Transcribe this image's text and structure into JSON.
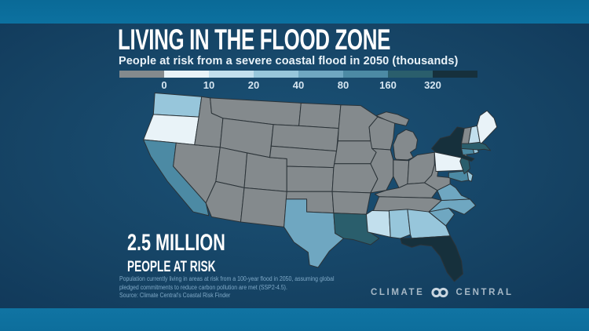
{
  "header": {
    "title": "LIVING IN THE FLOOD ZONE",
    "subtitle": "People at risk from a severe coastal flood in 2050 (thousands)"
  },
  "legend": {
    "tick_labels": [
      "0",
      "10",
      "20",
      "40",
      "80",
      "160",
      "320"
    ],
    "bin_colors": [
      "#848A8D",
      "#E9F3F8",
      "#C2DFED",
      "#97C6DB",
      "#6FA7C1",
      "#4C8AA4",
      "#2A5E6C",
      "#16303C"
    ],
    "bin_ranges": [
      "not shown (inland)",
      "0–10",
      "10–20",
      "20–40",
      "40–80",
      "80–160",
      "160–320",
      "320+"
    ]
  },
  "stat": {
    "line1": "2.5 MILLION",
    "line2": "PEOPLE AT RISK"
  },
  "footnote": {
    "lines": [
      "Population currently living in areas at risk from a 100-year flood in 2050, assuming global",
      "pledged commitments to reduce carbon pollution are met (SSP2-4.5).",
      "Source: Climate Central's Coastal Risk Finder"
    ]
  },
  "logo": {
    "left": "CLIMATE",
    "right": "CENTRAL"
  },
  "chart_data": {
    "type": "heatmap",
    "subtype": "choropleth-us-states",
    "title": "LIVING IN THE FLOOD ZONE",
    "subtitle": "People at risk from a severe coastal flood in 2050 (thousands)",
    "units": "thousands of people at risk",
    "scale_thresholds": [
      0,
      10,
      20,
      40,
      80,
      160,
      320
    ],
    "total_callout": "2.5 MILLION PEOPLE AT RISK",
    "legend_position": "top",
    "states": [
      {
        "id": "WA",
        "name": "Washington",
        "bin": 3,
        "range_thousands": "20-40"
      },
      {
        "id": "OR",
        "name": "Oregon",
        "bin": 1,
        "range_thousands": "0-10"
      },
      {
        "id": "CA",
        "name": "California",
        "bin": 5,
        "range_thousands": "80-160"
      },
      {
        "id": "TX",
        "name": "Texas",
        "bin": 4,
        "range_thousands": "40-80"
      },
      {
        "id": "LA",
        "name": "Louisiana",
        "bin": 6,
        "range_thousands": "160-320"
      },
      {
        "id": "MS",
        "name": "Mississippi",
        "bin": 2,
        "range_thousands": "10-20"
      },
      {
        "id": "AL",
        "name": "Alabama",
        "bin": 3,
        "range_thousands": "20-40"
      },
      {
        "id": "GA",
        "name": "Georgia",
        "bin": 3,
        "range_thousands": "20-40"
      },
      {
        "id": "FL",
        "name": "Florida",
        "bin": 7,
        "range_thousands": "320+"
      },
      {
        "id": "SC",
        "name": "South Carolina",
        "bin": 4,
        "range_thousands": "40-80"
      },
      {
        "id": "NC",
        "name": "North Carolina",
        "bin": 4,
        "range_thousands": "40-80"
      },
      {
        "id": "VA",
        "name": "Virginia",
        "bin": 4,
        "range_thousands": "40-80"
      },
      {
        "id": "MD",
        "name": "Maryland",
        "bin": 5,
        "range_thousands": "80-160"
      },
      {
        "id": "DE",
        "name": "Delaware",
        "bin": 3,
        "range_thousands": "20-40"
      },
      {
        "id": "NJ",
        "name": "New Jersey",
        "bin": 6,
        "range_thousands": "160-320"
      },
      {
        "id": "PA",
        "name": "Pennsylvania",
        "bin": 1,
        "range_thousands": "0-10"
      },
      {
        "id": "NY",
        "name": "New York",
        "bin": 7,
        "range_thousands": "320+"
      },
      {
        "id": "CT",
        "name": "Connecticut",
        "bin": 5,
        "range_thousands": "80-160"
      },
      {
        "id": "RI",
        "name": "Rhode Island",
        "bin": 3,
        "range_thousands": "20-40"
      },
      {
        "id": "MA",
        "name": "Massachusetts",
        "bin": 6,
        "range_thousands": "160-320"
      },
      {
        "id": "NH",
        "name": "New Hampshire",
        "bin": 2,
        "range_thousands": "10-20"
      },
      {
        "id": "ME",
        "name": "Maine",
        "bin": 1,
        "range_thousands": "0-10"
      },
      {
        "id": "VT",
        "name": "Vermont",
        "bin": 0,
        "range_thousands": "not shown"
      },
      {
        "id": "WV",
        "name": "West Virginia",
        "bin": 0,
        "range_thousands": "not shown"
      },
      {
        "id": "ID",
        "name": "Idaho",
        "bin": 0,
        "range_thousands": "not shown"
      },
      {
        "id": "MT",
        "name": "Montana",
        "bin": 0,
        "range_thousands": "not shown"
      },
      {
        "id": "WY",
        "name": "Wyoming",
        "bin": 0,
        "range_thousands": "not shown"
      },
      {
        "id": "NV",
        "name": "Nevada",
        "bin": 0,
        "range_thousands": "not shown"
      },
      {
        "id": "UT",
        "name": "Utah",
        "bin": 0,
        "range_thousands": "not shown"
      },
      {
        "id": "CO",
        "name": "Colorado",
        "bin": 0,
        "range_thousands": "not shown"
      },
      {
        "id": "AZ",
        "name": "Arizona",
        "bin": 0,
        "range_thousands": "not shown"
      },
      {
        "id": "NM",
        "name": "New Mexico",
        "bin": 0,
        "range_thousands": "not shown"
      },
      {
        "id": "ND",
        "name": "North Dakota",
        "bin": 0,
        "range_thousands": "not shown"
      },
      {
        "id": "SD",
        "name": "South Dakota",
        "bin": 0,
        "range_thousands": "not shown"
      },
      {
        "id": "NE",
        "name": "Nebraska",
        "bin": 0,
        "range_thousands": "not shown"
      },
      {
        "id": "KS",
        "name": "Kansas",
        "bin": 0,
        "range_thousands": "not shown"
      },
      {
        "id": "OK",
        "name": "Oklahoma",
        "bin": 0,
        "range_thousands": "not shown"
      },
      {
        "id": "MN",
        "name": "Minnesota",
        "bin": 0,
        "range_thousands": "not shown"
      },
      {
        "id": "IA",
        "name": "Iowa",
        "bin": 0,
        "range_thousands": "not shown"
      },
      {
        "id": "MO",
        "name": "Missouri",
        "bin": 0,
        "range_thousands": "not shown"
      },
      {
        "id": "AR",
        "name": "Arkansas",
        "bin": 0,
        "range_thousands": "not shown"
      },
      {
        "id": "WI",
        "name": "Wisconsin",
        "bin": 0,
        "range_thousands": "not shown"
      },
      {
        "id": "IL",
        "name": "Illinois",
        "bin": 0,
        "range_thousands": "not shown"
      },
      {
        "id": "MI",
        "name": "Michigan",
        "bin": 0,
        "range_thousands": "not shown"
      },
      {
        "id": "IN",
        "name": "Indiana",
        "bin": 0,
        "range_thousands": "not shown"
      },
      {
        "id": "OH",
        "name": "Ohio",
        "bin": 0,
        "range_thousands": "not shown"
      },
      {
        "id": "KY",
        "name": "Kentucky",
        "bin": 0,
        "range_thousands": "not shown"
      },
      {
        "id": "TN",
        "name": "Tennessee",
        "bin": 0,
        "range_thousands": "not shown"
      }
    ]
  }
}
